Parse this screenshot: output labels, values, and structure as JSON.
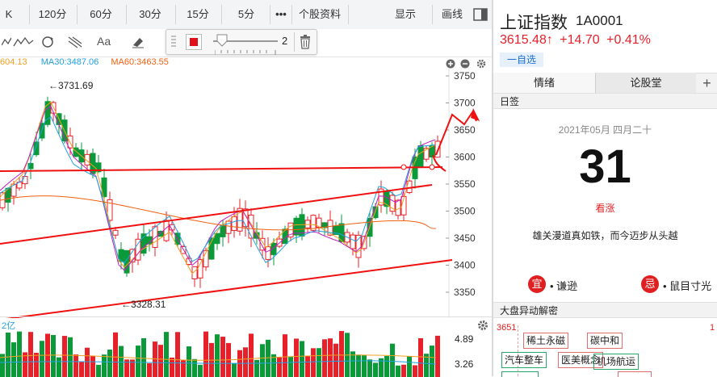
{
  "toolbar": {
    "periods": [
      "K",
      "120分",
      "60分",
      "30分",
      "15分",
      "5分"
    ],
    "more": "•••",
    "profile": "个股资料",
    "display": "显示",
    "display_arrow": "▼",
    "draw": "画线"
  },
  "tools": {
    "text_tool": "Aa",
    "line_width": "2"
  },
  "ma_legend": {
    "ma5": "604.13",
    "ma30": "MA30:3487.06",
    "ma60": "MA60:3463.55"
  },
  "price_axis": [
    "3750",
    "3700",
    "3650",
    "3600",
    "3550",
    "3500",
    "3450",
    "3400",
    "3350"
  ],
  "annotations": {
    "high": "←3731.69",
    "low": "←3328.31"
  },
  "volume": {
    "label": "2亿",
    "axis_top": "4.89",
    "axis_mid": "3.26"
  },
  "quote": {
    "name": "上证指数",
    "code": "1A0001",
    "price": "3615.48",
    "arrow": "↑",
    "change": "+14.70",
    "pct": "+0.41%",
    "watch_button": "一自选"
  },
  "tabs": [
    "情绪",
    "论股堂"
  ],
  "tab_add": "+",
  "daily": {
    "header": "日签",
    "date": "2021年05月 四月二十",
    "day": "31",
    "mood": "看涨",
    "quote": "雄关漫道真如铁，而今迈步从头越",
    "good_label": "宜",
    "good_text": "谦逊",
    "bad_label": "忌",
    "bad_text": "鼠目寸光"
  },
  "anomaly": {
    "header": "大盘异动解密",
    "left_value": "3651",
    "right_value": "1",
    "tags": [
      "稀土永磁",
      "碳中和",
      "汽车整车",
      "医美概念",
      "机场航运"
    ]
  },
  "colors": {
    "up": "#e8202a",
    "down": "#0a9a3a",
    "ma5": "#333333",
    "ma10": "#f0a020",
    "ma20": "#c020c0",
    "ma30": "#20a0e0",
    "ma60": "#f06010",
    "trendline": "#f01010"
  }
}
